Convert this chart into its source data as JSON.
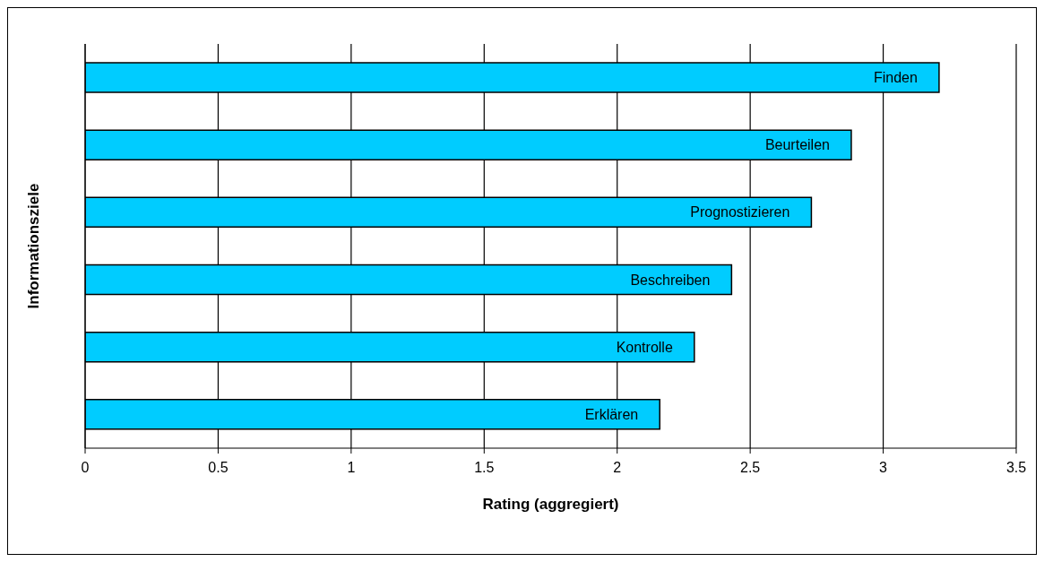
{
  "chart_data": {
    "type": "bar",
    "orientation": "horizontal",
    "xlabel": "Rating (aggregiert)",
    "ylabel": "Informationsziele",
    "categories": [
      "Finden",
      "Beurteilen",
      "Prognostizieren",
      "Beschreiben",
      "Kontrolle",
      "Erklären"
    ],
    "values": [
      3.21,
      2.88,
      2.73,
      2.43,
      2.29,
      2.16
    ],
    "color": "#00ccff",
    "xlim": [
      0,
      3.5
    ],
    "xticks": [
      0,
      0.5,
      1,
      1.5,
      2,
      2.5,
      3,
      3.5
    ],
    "grid": "x",
    "legend": false,
    "tick_labels": "x"
  }
}
